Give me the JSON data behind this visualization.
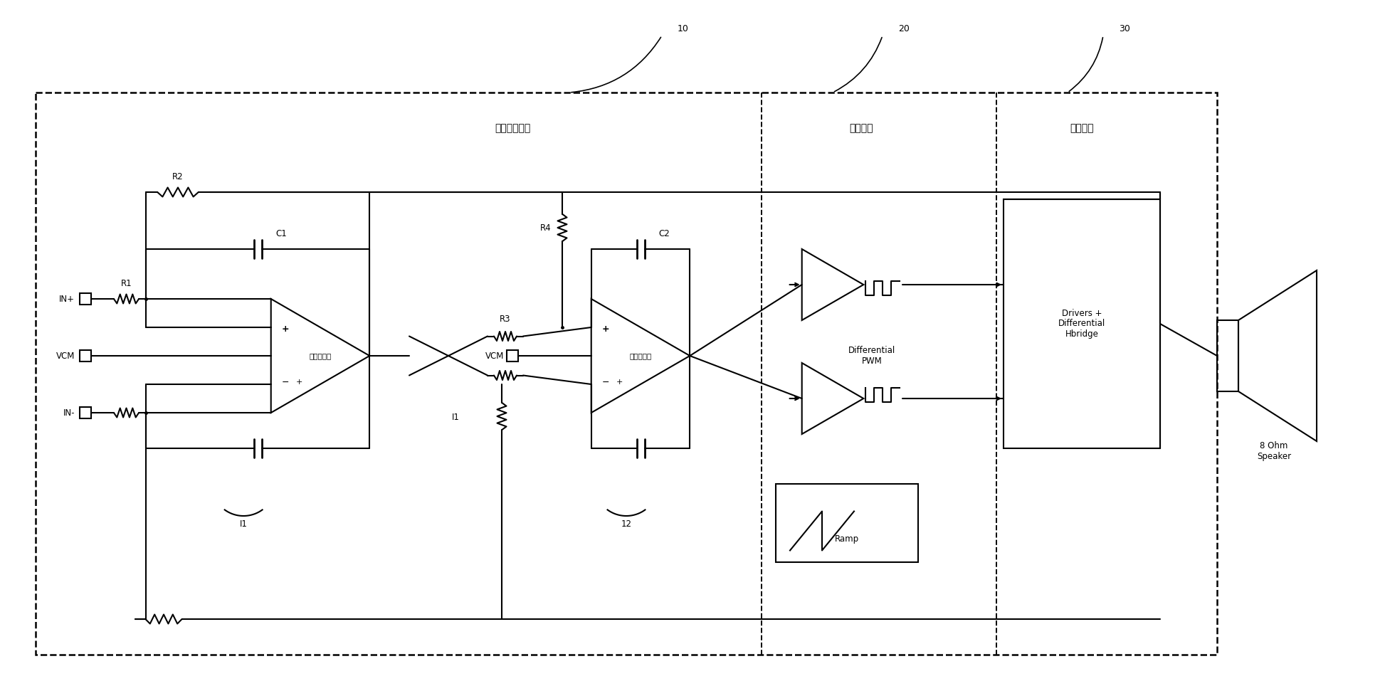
{
  "bg_color": "#ffffff",
  "lc": "#000000",
  "lw": 1.5,
  "figsize": [
    19.46,
    9.57
  ],
  "dpi": 100,
  "labels": {
    "filter_label": "二阶滤波电路",
    "mod_label": "调制电路",
    "out_label": "输出电路",
    "int1_label": "第一积分器",
    "int2_label": "第二积分器",
    "in_plus": "IN+",
    "vcm": "VCM",
    "in_minus": "IN-",
    "r1": "R1",
    "r2": "R2",
    "r3": "R3",
    "r4": "R4",
    "c1": "C1",
    "c2": "C2",
    "i1": "I1",
    "i1b": "I1",
    "i2": "12",
    "diff_pwm": "Differential\nPWM",
    "drivers": "Drivers +\nDifferential\nHbridge",
    "ramp": "Ramp",
    "speaker": "8 Ohm\nSpeaker",
    "n10": "10",
    "n20": "20",
    "n30": "30"
  }
}
